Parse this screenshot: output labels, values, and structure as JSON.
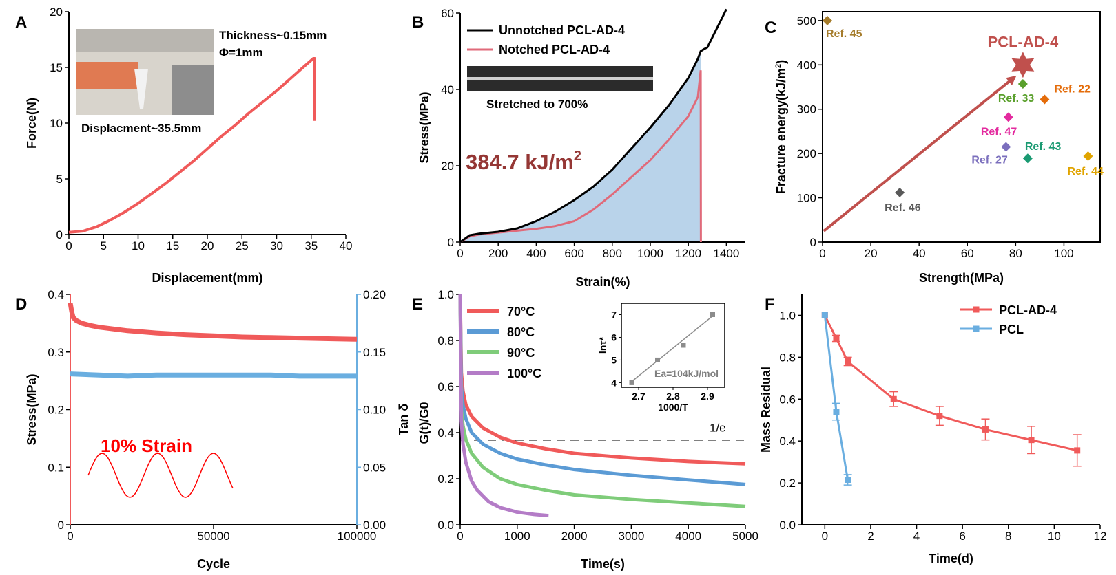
{
  "chart_data": [
    {
      "panel": "A",
      "type": "line",
      "xlabel": "Displacement(mm)",
      "ylabel": "Force(N)",
      "xlim": [
        0,
        40
      ],
      "ylim": [
        0,
        20
      ],
      "xticks": [
        0,
        5,
        10,
        15,
        20,
        25,
        30,
        35,
        40
      ],
      "yticks": [
        0,
        5,
        10,
        15,
        20
      ],
      "annotations": [
        "Thickness~0.15mm",
        "Φ=1mm",
        "Displacment~35.5mm"
      ],
      "series": [
        {
          "color": "#f05a5a",
          "x": [
            0,
            2,
            4,
            6,
            8,
            10,
            12,
            14,
            16,
            18,
            20,
            22,
            24,
            26,
            28,
            30,
            32,
            34,
            35.3,
            35.5,
            35.5
          ],
          "y": [
            0.2,
            0.3,
            0.7,
            1.3,
            2.0,
            2.8,
            3.7,
            4.6,
            5.6,
            6.6,
            7.7,
            8.8,
            9.8,
            10.9,
            11.9,
            12.9,
            14.0,
            15.1,
            15.8,
            15.8,
            10.2
          ]
        }
      ]
    },
    {
      "panel": "B",
      "type": "area",
      "xlabel": "Strain(%)",
      "ylabel": "Stress(MPa)",
      "xlim": [
        0,
        1500
      ],
      "ylim": [
        0,
        60
      ],
      "xticks": [
        0,
        200,
        400,
        600,
        800,
        1000,
        1200,
        1400
      ],
      "yticks": [
        0,
        20,
        40,
        60
      ],
      "inset_label": "Stretched to 700%",
      "energy_label": "384.7 kJ/m",
      "energy_sup": "2",
      "series": [
        {
          "name": "Unnotched PCL-AD-4",
          "color": "#000000",
          "x": [
            0,
            50,
            100,
            200,
            300,
            400,
            500,
            600,
            700,
            800,
            900,
            1000,
            1100,
            1200,
            1250,
            1265,
            1280,
            1300,
            1340,
            1380,
            1400
          ],
          "y": [
            0,
            1.8,
            2.2,
            2.7,
            3.6,
            5.5,
            8,
            11,
            14.5,
            19,
            24.5,
            30,
            36,
            43,
            48,
            50,
            50.5,
            51,
            55,
            59,
            61
          ]
        },
        {
          "name": "Notched PCL-AD-4",
          "color": "#e06a7a",
          "x": [
            0,
            50,
            100,
            200,
            300,
            400,
            500,
            600,
            700,
            800,
            900,
            1000,
            1100,
            1200,
            1250,
            1265,
            1266
          ],
          "y": [
            0,
            1.5,
            2,
            2.5,
            3,
            3.5,
            4.2,
            5.5,
            8.5,
            12.5,
            17,
            21.5,
            27,
            33,
            38,
            45,
            0
          ]
        }
      ]
    },
    {
      "panel": "C",
      "type": "scatter",
      "xlabel": "Strength(MPa)",
      "ylabel": "Fracture energy(kJ/m",
      "ylabel_sup": "2",
      "ylabel_end": ")",
      "xlim": [
        0,
        115
      ],
      "ylim": [
        0,
        520
      ],
      "xticks": [
        0,
        20,
        40,
        60,
        80,
        100
      ],
      "yticks": [
        0,
        100,
        200,
        300,
        400,
        500
      ],
      "highlight": {
        "label": "PCL-AD-4",
        "x": 83,
        "y": 400,
        "color": "#c0504d"
      },
      "points": [
        {
          "label": "Ref. 45",
          "x": 2,
          "y": 500,
          "color": "#a57c2b"
        },
        {
          "label": "Ref. 33",
          "x": 83,
          "y": 357,
          "color": "#5aa02c"
        },
        {
          "label": "Ref. 22",
          "x": 92,
          "y": 322,
          "color": "#e46c0a"
        },
        {
          "label": "Ref. 47",
          "x": 77,
          "y": 282,
          "color": "#e32a9e"
        },
        {
          "label": "Ref. 27",
          "x": 76,
          "y": 215,
          "color": "#7b6fbd"
        },
        {
          "label": "Ref. 43",
          "x": 85,
          "y": 189,
          "color": "#1a9a72"
        },
        {
          "label": "Ref. 44",
          "x": 110,
          "y": 194,
          "color": "#e0a400"
        },
        {
          "label": "Ref. 46",
          "x": 32,
          "y": 112,
          "color": "#595959"
        }
      ]
    },
    {
      "panel": "D",
      "type": "line",
      "xlabel": "Cycle",
      "ylabel": "Stress(MPa)",
      "ylabel_right": "Tan δ",
      "xlim": [
        0,
        100000
      ],
      "ylim": [
        0,
        0.4
      ],
      "ylim_right": [
        0,
        0.2
      ],
      "xticks": [
        0,
        50000,
        100000
      ],
      "yticks": [
        0,
        0.1,
        0.2,
        0.3,
        0.4
      ],
      "yticks_right": [
        "0.00",
        "0.05",
        "0.10",
        "0.15",
        "0.20"
      ],
      "annotation": "10% Strain",
      "series": [
        {
          "name": "Stress",
          "color": "#f05a5a",
          "x": [
            0,
            500,
            1000,
            2000,
            4000,
            7000,
            10000,
            20000,
            30000,
            40000,
            50000,
            60000,
            70000,
            80000,
            90000,
            100000
          ],
          "y": [
            0.385,
            0.37,
            0.36,
            0.355,
            0.35,
            0.346,
            0.343,
            0.337,
            0.333,
            0.33,
            0.328,
            0.326,
            0.325,
            0.324,
            0.323,
            0.322
          ]
        },
        {
          "name": "Tan δ",
          "color": "#6aaee0",
          "axis": "right",
          "x": [
            0,
            10000,
            20000,
            30000,
            40000,
            50000,
            60000,
            70000,
            80000,
            90000,
            100000
          ],
          "y": [
            0.131,
            0.13,
            0.129,
            0.13,
            0.13,
            0.13,
            0.13,
            0.13,
            0.129,
            0.129,
            0.129
          ]
        }
      ]
    },
    {
      "panel": "E",
      "type": "line",
      "xlabel": "Time(s)",
      "ylabel": "G(t)/G0",
      "xlim": [
        0,
        5000
      ],
      "ylim": [
        0,
        1.0
      ],
      "xticks": [
        0,
        1000,
        2000,
        3000,
        4000,
        5000
      ],
      "yticks": [
        "0.0",
        "0.2",
        "0.4",
        "0.6",
        "0.8",
        "1.0"
      ],
      "reference_line": {
        "label": "1/e",
        "y": 0.368
      },
      "series": [
        {
          "name": "70°C",
          "color": "#f05a5a",
          "x": [
            0,
            20,
            50,
            100,
            200,
            400,
            700,
            1000,
            1500,
            2000,
            3000,
            4000,
            5000
          ],
          "y": [
            1.0,
            0.66,
            0.58,
            0.52,
            0.47,
            0.42,
            0.38,
            0.355,
            0.33,
            0.31,
            0.29,
            0.275,
            0.265
          ]
        },
        {
          "name": "80°C",
          "color": "#5b9bd5",
          "x": [
            0,
            20,
            50,
            100,
            200,
            400,
            700,
            1000,
            1500,
            2000,
            3000,
            4000,
            5000
          ],
          "y": [
            1.0,
            0.6,
            0.52,
            0.46,
            0.4,
            0.35,
            0.31,
            0.285,
            0.26,
            0.24,
            0.215,
            0.195,
            0.175
          ]
        },
        {
          "name": "90°C",
          "color": "#7fcc7a",
          "x": [
            0,
            20,
            50,
            100,
            200,
            400,
            700,
            1000,
            1500,
            2000,
            3000,
            4000,
            5000
          ],
          "y": [
            1.0,
            0.5,
            0.43,
            0.37,
            0.31,
            0.25,
            0.2,
            0.175,
            0.15,
            0.13,
            0.11,
            0.095,
            0.08
          ]
        },
        {
          "name": "100°C",
          "color": "#b47cc7",
          "x": [
            0,
            20,
            50,
            100,
            200,
            300,
            500,
            700,
            1000,
            1300,
            1550
          ],
          "y": [
            1.0,
            0.45,
            0.35,
            0.27,
            0.19,
            0.15,
            0.1,
            0.075,
            0.055,
            0.045,
            0.04
          ]
        }
      ],
      "inset": {
        "type": "scatter",
        "xlabel": "1000/T",
        "ylabel": "lnτ*",
        "xlim": [
          2.65,
          2.95
        ],
        "ylim": [
          3.8,
          7.5
        ],
        "xticks": [
          "2.7",
          "2.8",
          "2.9"
        ],
        "yticks": [
          "4",
          "5",
          "6",
          "7"
        ],
        "annotation": "Ea=104kJ/mol",
        "x": [
          2.68,
          2.755,
          2.83,
          2.915
        ],
        "y": [
          4.0,
          5.0,
          5.65,
          7.0
        ]
      }
    },
    {
      "panel": "F",
      "type": "line",
      "xlabel": "Time(d)",
      "ylabel": "Mass Residual",
      "xlim": [
        -1,
        12
      ],
      "ylim": [
        0,
        1.1
      ],
      "xticks": [
        0,
        2,
        4,
        6,
        8,
        10,
        12
      ],
      "yticks": [
        "0.0",
        "0.2",
        "0.4",
        "0.6",
        "0.8",
        "1.0"
      ],
      "series": [
        {
          "name": "PCL-AD-4",
          "color": "#f05a5a",
          "x": [
            0,
            0.5,
            1,
            3,
            5,
            7,
            9,
            11
          ],
          "y": [
            1.0,
            0.89,
            0.78,
            0.6,
            0.52,
            0.455,
            0.405,
            0.355
          ],
          "err": [
            0,
            0.015,
            0.02,
            0.035,
            0.045,
            0.05,
            0.065,
            0.075
          ]
        },
        {
          "name": "PCL",
          "color": "#6aaee0",
          "x": [
            0,
            0.5,
            1
          ],
          "y": [
            1.0,
            0.54,
            0.215
          ],
          "err": [
            0,
            0.04,
            0.025
          ]
        }
      ]
    }
  ]
}
